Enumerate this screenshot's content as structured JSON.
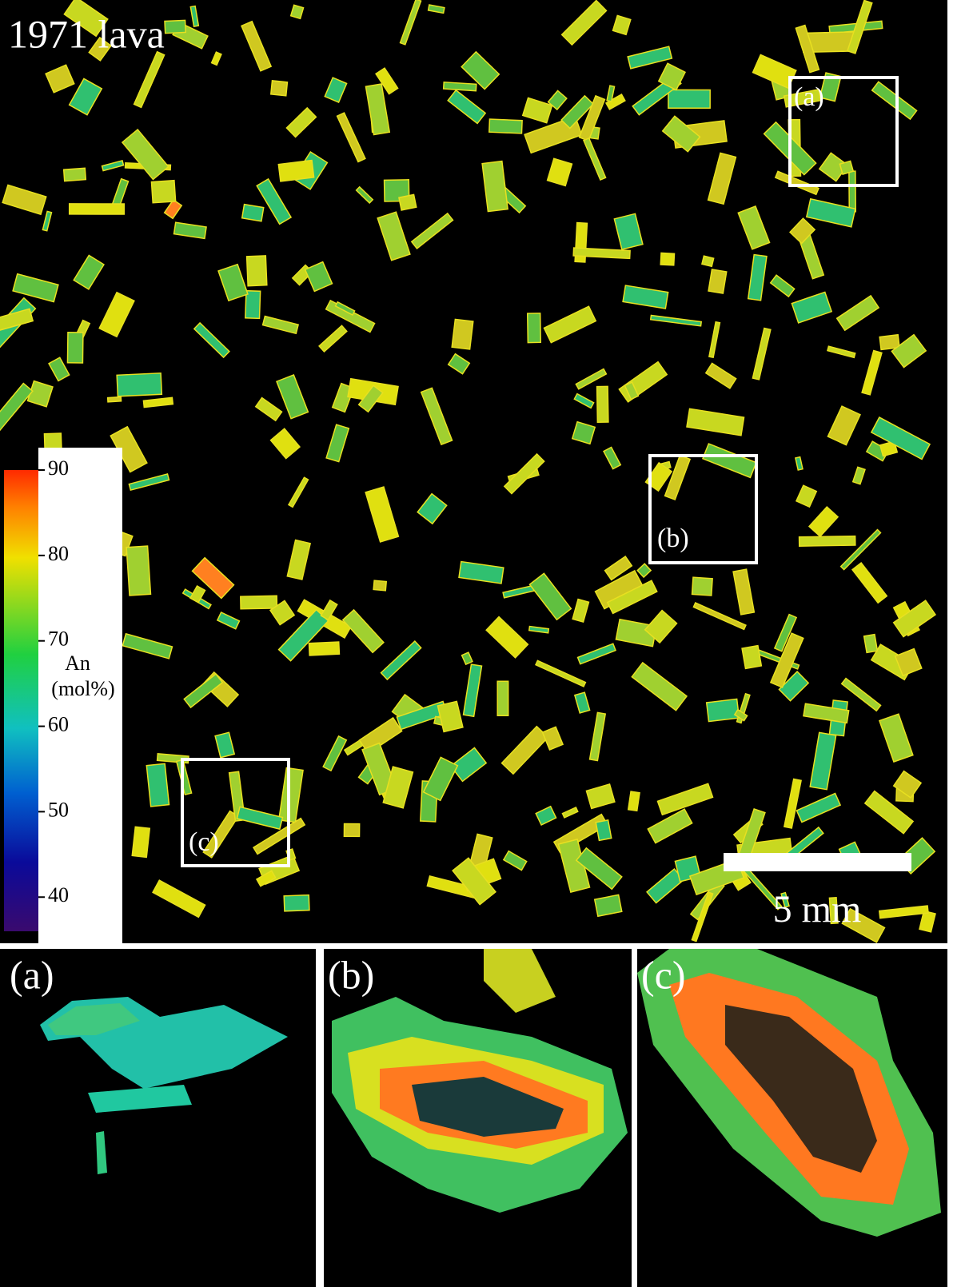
{
  "main": {
    "title": "1971 lava",
    "boxes": [
      {
        "label": "(a)"
      },
      {
        "label": "(b)"
      },
      {
        "label": "(c)"
      }
    ],
    "colorbar": {
      "label": "An",
      "unit": "(mol%)",
      "lim": [
        36,
        90
      ],
      "ticks": [
        40,
        50,
        60,
        70,
        80,
        90
      ]
    },
    "scale_bar": {
      "label": "5 mm"
    }
  },
  "panels": [
    {
      "label": "(a)"
    },
    {
      "label": "(b)"
    },
    {
      "label": "(c)"
    }
  ]
}
